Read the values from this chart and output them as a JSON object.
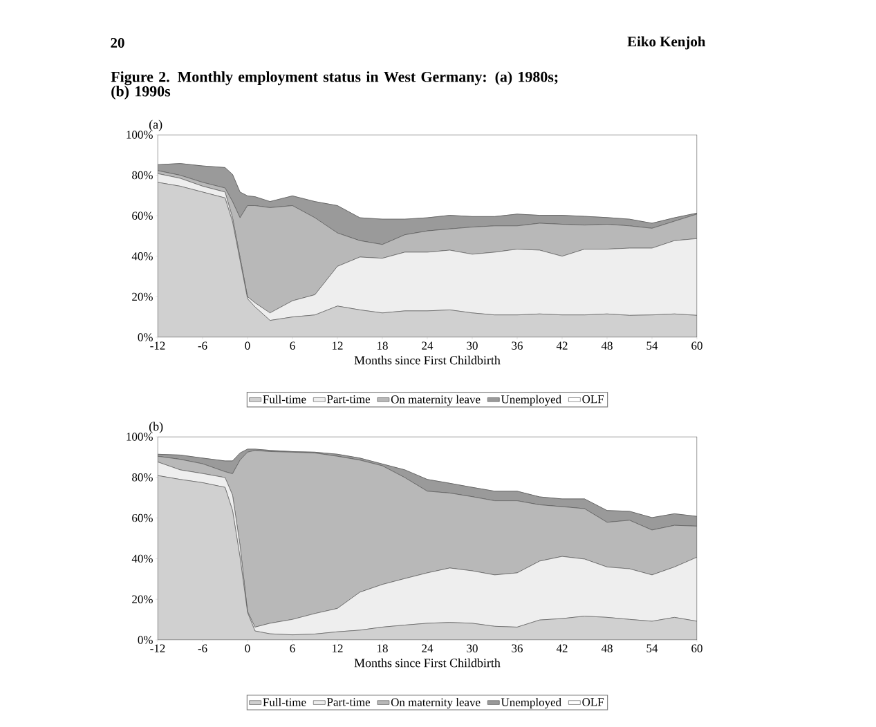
{
  "chart_data": [
    {
      "type": "area",
      "stacked": true,
      "title": "Figure 2.  Monthly employment status in West Germany: (a) 1980s; (b) 1990s",
      "subtitle": "(a)",
      "annotations": [
        "20",
        "Eiko Kenjoh"
      ],
      "xlabel": "Months since First Childbirth",
      "x": [
        -12,
        -9,
        -6,
        -3,
        -2,
        -1,
        0,
        1,
        3,
        6,
        9,
        12,
        15,
        18,
        21,
        24,
        27,
        30,
        33,
        36,
        39,
        42,
        45,
        48,
        51,
        54,
        57,
        60
      ],
      "series": [
        {
          "name": "Full-time",
          "color": "#d0d0d0",
          "values": [
            76.5,
            74.6,
            71.7,
            68.8,
            57.0,
            38.0,
            19.0,
            15.0,
            8.3,
            10.0,
            11.0,
            15.4,
            13.5,
            12.0,
            13.0,
            13.0,
            13.5,
            12.0,
            11.0,
            11.0,
            11.5,
            11.0,
            11.0,
            11.5,
            10.8,
            11.0,
            11.5,
            10.8
          ]
        },
        {
          "name": "Part-time",
          "color": "#eeeeee",
          "values": [
            4.3,
            3.9,
            2.9,
            2.9,
            2.0,
            1.5,
            1.0,
            2.0,
            3.7,
            8.0,
            10.0,
            19.6,
            26.1,
            27.0,
            29.0,
            29.0,
            29.5,
            29.0,
            31.0,
            32.5,
            31.5,
            29.0,
            32.5,
            32.0,
            33.2,
            33.0,
            36.2,
            37.9
          ]
        },
        {
          "name": "On maternity leave",
          "color": "#b8b8b8",
          "values": [
            1.5,
            1.5,
            1.9,
            2.0,
            8.0,
            19.5,
            45.0,
            48.0,
            52.0,
            47.0,
            38.0,
            16.5,
            8.1,
            6.8,
            8.6,
            10.5,
            10.5,
            13.4,
            13.0,
            11.5,
            13.3,
            15.8,
            11.9,
            12.3,
            11.0,
            9.8,
            9.6,
            12.1
          ]
        },
        {
          "name": "Unemployed",
          "color": "#9a9a9a",
          "values": [
            2.9,
            5.8,
            8.1,
            10.1,
            13.4,
            12.7,
            4.8,
            4.4,
            3.0,
            4.8,
            8.0,
            13.5,
            11.3,
            12.5,
            7.7,
            6.5,
            6.7,
            5.2,
            4.6,
            5.8,
            3.9,
            4.4,
            4.3,
            3.3,
            3.3,
            2.5,
            1.7,
            0.5
          ]
        },
        {
          "name": "OLF",
          "color": "#ffffff",
          "values": [
            14.8,
            14.2,
            15.4,
            16.2,
            19.6,
            28.3,
            30.2,
            30.6,
            33.0,
            30.2,
            33.0,
            35.0,
            41.0,
            41.7,
            41.7,
            41.0,
            39.8,
            40.4,
            40.4,
            39.2,
            39.8,
            39.8,
            40.3,
            40.9,
            41.7,
            43.7,
            41.0,
            38.7
          ]
        }
      ],
      "xlim": [
        -12,
        60
      ],
      "ylim": [
        0,
        100
      ],
      "xticks": [
        -12,
        -6,
        0,
        6,
        12,
        18,
        24,
        30,
        36,
        42,
        48,
        54,
        60
      ],
      "yticks": [
        {
          "value": 0,
          "label": "0%"
        },
        {
          "value": 20,
          "label": "20%"
        },
        {
          "value": 40,
          "label": "40%"
        },
        {
          "value": 60,
          "label": "60%"
        },
        {
          "value": 80,
          "label": "80%"
        },
        {
          "value": 100,
          "label": "100%"
        }
      ],
      "legend": "bottom"
    },
    {
      "type": "area",
      "stacked": true,
      "subtitle": "(b)",
      "xlabel": "Months since First Childbirth",
      "x": [
        -12,
        -9,
        -6,
        -3,
        -2,
        -1,
        0,
        1,
        3,
        6,
        9,
        12,
        15,
        18,
        21,
        24,
        27,
        30,
        33,
        36,
        39,
        42,
        45,
        48,
        51,
        54,
        57,
        60
      ],
      "series": [
        {
          "name": "Full-time",
          "color": "#d0d0d0",
          "values": [
            80.9,
            79.0,
            77.4,
            75.1,
            63.7,
            40.7,
            13.5,
            4.4,
            3.0,
            2.5,
            2.9,
            4.0,
            4.8,
            6.3,
            7.3,
            8.2,
            8.6,
            8.2,
            6.7,
            6.3,
            9.8,
            10.5,
            11.7,
            11.1,
            10.1,
            9.2,
            11.1,
            9.2
          ]
        },
        {
          "name": "Part-time",
          "color": "#eeeeee",
          "values": [
            6.7,
            4.7,
            4.5,
            4.8,
            7.6,
            5.8,
            0.5,
            1.9,
            5.2,
            7.6,
            10.1,
            11.5,
            18.7,
            21.0,
            22.9,
            24.8,
            26.8,
            25.8,
            25.3,
            26.7,
            29.0,
            30.6,
            28.1,
            24.8,
            24.9,
            22.8,
            24.8,
            31.5
          ]
        },
        {
          "name": "On maternity leave",
          "color": "#b8b8b8",
          "values": [
            2.8,
            5.2,
            4.8,
            2.9,
            10.5,
            42.0,
            78.4,
            87.0,
            84.5,
            82.3,
            79.0,
            74.9,
            65.0,
            58.4,
            49.7,
            40.2,
            36.9,
            36.5,
            36.5,
            35.5,
            27.7,
            24.5,
            24.8,
            22.0,
            23.9,
            22.1,
            20.5,
            15.3
          ]
        },
        {
          "name": "Unemployed",
          "color": "#9a9a9a",
          "values": [
            1.0,
            2.1,
            2.8,
            5.3,
            6.3,
            3.5,
            1.5,
            0.6,
            0.6,
            0.3,
            0.4,
            1.0,
            1.0,
            0.9,
            3.8,
            5.8,
            4.8,
            4.6,
            4.7,
            4.7,
            3.9,
            3.8,
            4.8,
            5.8,
            4.4,
            6.1,
            5.7,
            4.8
          ]
        },
        {
          "name": "OLF",
          "color": "#ffffff",
          "values": [
            8.6,
            9.0,
            10.5,
            11.9,
            11.9,
            8.0,
            6.1,
            6.1,
            6.7,
            7.3,
            7.6,
            8.6,
            10.5,
            13.4,
            16.3,
            21.0,
            22.9,
            24.9,
            26.8,
            26.8,
            29.6,
            30.6,
            30.6,
            36.3,
            36.7,
            39.8,
            37.9,
            39.2
          ]
        }
      ],
      "xlim": [
        -12,
        60
      ],
      "ylim": [
        0,
        100
      ],
      "xticks": [
        -12,
        -6,
        0,
        6,
        12,
        18,
        24,
        30,
        36,
        42,
        48,
        54,
        60
      ],
      "yticks": [
        {
          "value": 0,
          "label": "0%"
        },
        {
          "value": 20,
          "label": "20%"
        },
        {
          "value": 40,
          "label": "40%"
        },
        {
          "value": 60,
          "label": "60%"
        },
        {
          "value": 80,
          "label": "80%"
        },
        {
          "value": 100,
          "label": "100%"
        }
      ],
      "legend": "bottom"
    }
  ]
}
